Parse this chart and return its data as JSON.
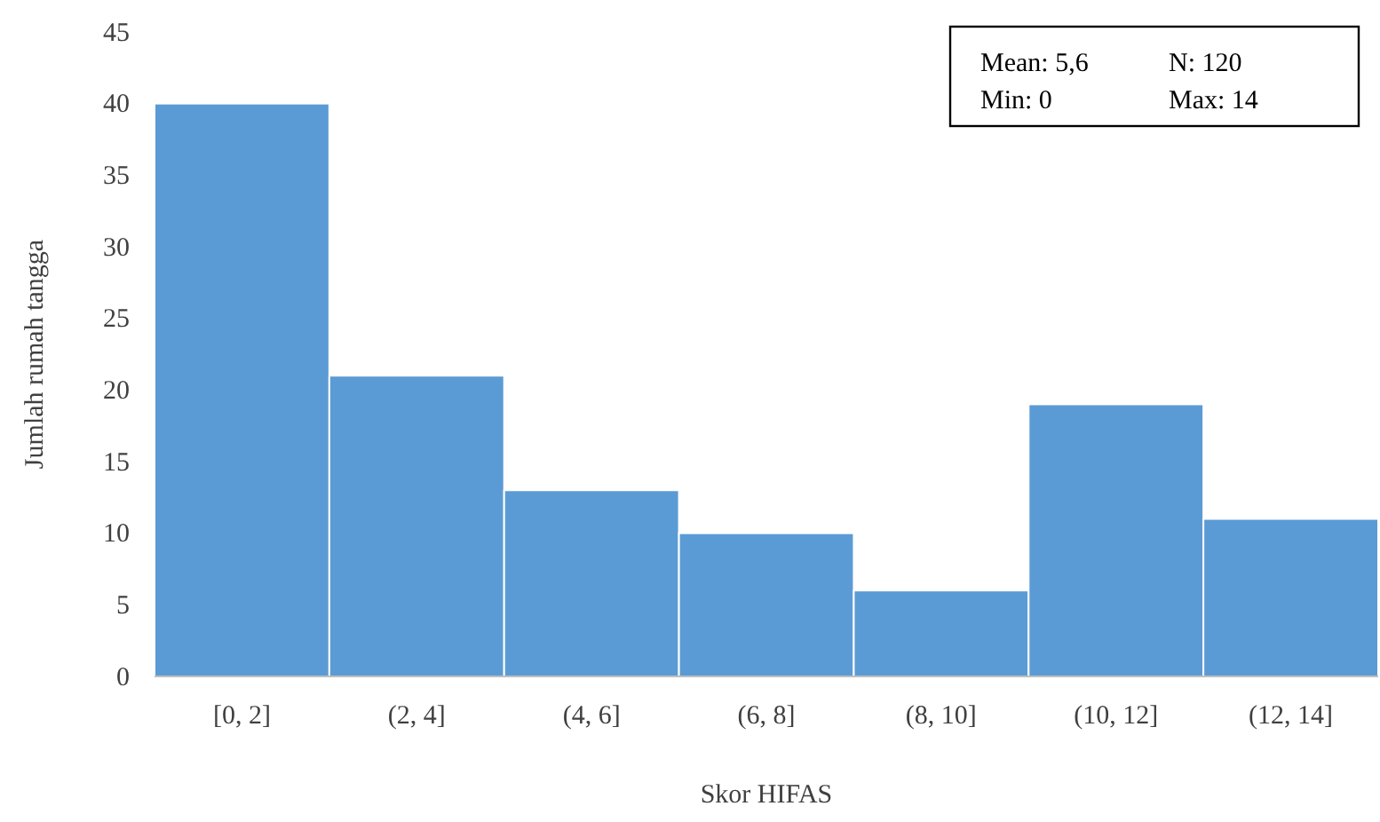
{
  "chart_data": {
    "type": "bar",
    "xlabel": "Skor HIFAS",
    "ylabel": "Jumlah rumah tangga",
    "categories": [
      "[0, 2]",
      "(2, 4]",
      "(4, 6]",
      "(6, 8]",
      "(8, 10]",
      "(10, 12]",
      "(12, 14]"
    ],
    "values": [
      40,
      21,
      13,
      10,
      6,
      19,
      11
    ],
    "color": "#5b9bd5",
    "ylim": [
      0,
      45
    ],
    "yticks": [
      0,
      5,
      10,
      15,
      20,
      25,
      30,
      35,
      40,
      45
    ],
    "grid": false,
    "annotations": [
      "Mean: 5,6",
      "N: 120",
      "Min: 0",
      "Max: 14"
    ]
  }
}
